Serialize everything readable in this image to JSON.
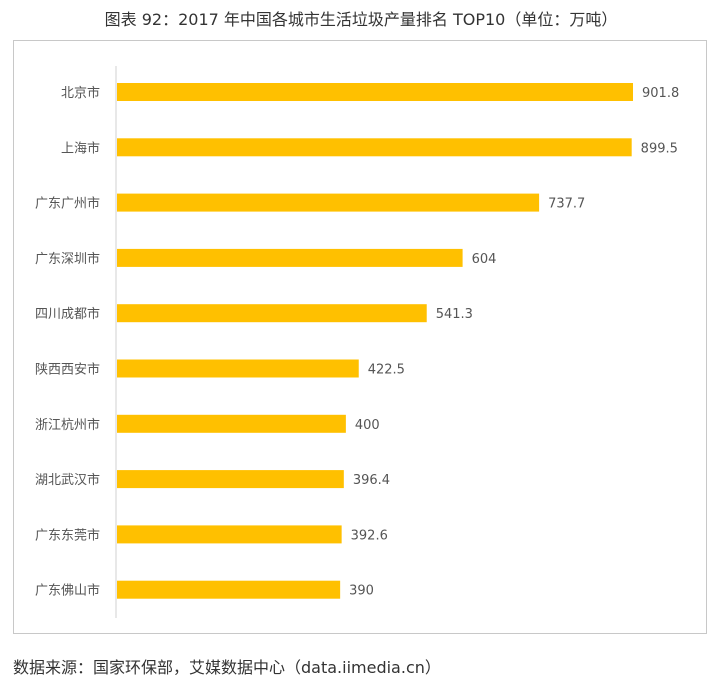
{
  "title": "图表 92：2017 年中国各城市生活垃圾产量排名 TOP10（单位：万吨）",
  "source": "数据来源：国家环保部，艾媒数据中心（data.iimedia.cn）",
  "colors": {
    "bar": "#FFC000",
    "axis": "#d0d0d0",
    "text": "#555555"
  },
  "chart_data": {
    "type": "bar",
    "orientation": "horizontal",
    "categories": [
      "北京市",
      "上海市",
      "广东广州市",
      "广东深圳市",
      "四川成都市",
      "陕西西安市",
      "浙江杭州市",
      "湖北武汉市",
      "广东东莞市",
      "广东佛山市"
    ],
    "values": [
      901.8,
      899.5,
      737.7,
      604,
      541.3,
      422.5,
      400,
      396.4,
      392.6,
      390
    ],
    "value_labels": [
      "901.8",
      "899.5",
      "737.7",
      "604",
      "541.3",
      "422.5",
      "400",
      "396.4",
      "392.6",
      "390"
    ],
    "xlim": [
      0,
      1000
    ],
    "grid": false,
    "legend": "none"
  }
}
